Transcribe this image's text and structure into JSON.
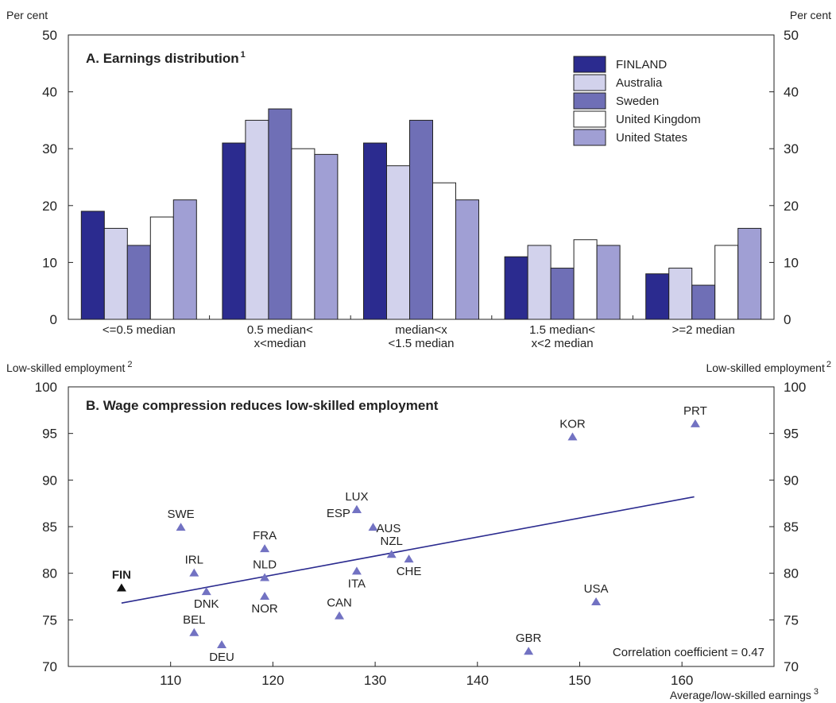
{
  "chart_data": [
    {
      "type": "bar",
      "title": "A. Earnings distribution",
      "title_note": "1",
      "ylabel_left": "Per cent",
      "ylabel_right": "Per cent",
      "ylim": [
        0,
        50
      ],
      "yticks": [
        0,
        10,
        20,
        30,
        40,
        50
      ],
      "ytick_labels": [
        "0",
        "10",
        "20",
        "30",
        "40",
        "50"
      ],
      "grid": false,
      "legend_position": "top-right",
      "categories": [
        [
          "<=0.5 median"
        ],
        [
          "0.5 median<",
          "x<median"
        ],
        [
          "median<x",
          "<1.5 median"
        ],
        [
          "1.5 median<",
          "x<2 median"
        ],
        [
          ">=2 median"
        ]
      ],
      "series": [
        {
          "name": "FINLAND",
          "color": "#2b2b8f",
          "values": [
            19,
            31,
            31,
            11,
            8
          ]
        },
        {
          "name": "Australia",
          "color": "#d2d2ec",
          "values": [
            16,
            35,
            27,
            13,
            9
          ]
        },
        {
          "name": "Sweden",
          "color": "#6f6fb6",
          "values": [
            13,
            37,
            35,
            9,
            6
          ]
        },
        {
          "name": "United Kingdom",
          "color": "#ffffff",
          "values": [
            18,
            30,
            24,
            14,
            13
          ]
        },
        {
          "name": "United States",
          "color": "#a09fd4",
          "values": [
            21,
            29,
            21,
            13,
            16
          ]
        }
      ]
    },
    {
      "type": "scatter",
      "title": "B. Wage compression reduces low-skilled employment",
      "ylabel_left": "Low-skilled employment",
      "ylabel_right": "Low-skilled employment",
      "ylabel_note": "2",
      "xlabel": "Average/low-skilled earnings",
      "xlabel_note": "3",
      "xlim": [
        100,
        169
      ],
      "ylim": [
        70,
        100
      ],
      "xticks": [
        110,
        120,
        130,
        140,
        150,
        160
      ],
      "xtick_labels": [
        "110",
        "120",
        "130",
        "140",
        "150",
        "160"
      ],
      "yticks": [
        70,
        75,
        80,
        85,
        90,
        95,
        100
      ],
      "ytick_labels": [
        "70",
        "75",
        "80",
        "85",
        "90",
        "95",
        "100"
      ],
      "grid": false,
      "marker_color": "#7272c2",
      "highlight_color": "#111111",
      "trend_color": "#2b2b8f",
      "trend_line": {
        "x": [
          105.2,
          161.2
        ],
        "y": [
          76.8,
          88.2
        ]
      },
      "annotation": "Correlation coefficient =  0.47",
      "points": [
        {
          "label": "FIN",
          "x": 105.2,
          "y": 78.4,
          "highlight": true
        },
        {
          "label": "SWE",
          "x": 111.0,
          "y": 84.9
        },
        {
          "label": "IRL",
          "x": 112.3,
          "y": 80.0
        },
        {
          "label": "DNK",
          "x": 113.5,
          "y": 78.0
        },
        {
          "label": "BEL",
          "x": 112.3,
          "y": 73.6
        },
        {
          "label": "DEU",
          "x": 115.0,
          "y": 72.3
        },
        {
          "label": "FRA",
          "x": 119.2,
          "y": 82.6
        },
        {
          "label": "NLD",
          "x": 119.2,
          "y": 79.5
        },
        {
          "label": "NOR",
          "x": 119.2,
          "y": 77.5
        },
        {
          "label": "CAN",
          "x": 126.5,
          "y": 75.4
        },
        {
          "label": "LUX",
          "x": 128.2,
          "y": 86.8
        },
        {
          "label": "ESP",
          "x": 128.2,
          "y": 86.8
        },
        {
          "label": "AUS",
          "x": 129.8,
          "y": 84.9
        },
        {
          "label": "ITA",
          "x": 128.2,
          "y": 80.2
        },
        {
          "label": "NZL",
          "x": 131.6,
          "y": 82.0
        },
        {
          "label": "CHE",
          "x": 133.3,
          "y": 81.5
        },
        {
          "label": "GBR",
          "x": 145.0,
          "y": 71.6
        },
        {
          "label": "KOR",
          "x": 149.3,
          "y": 94.6
        },
        {
          "label": "USA",
          "x": 151.6,
          "y": 76.9
        },
        {
          "label": "PRT",
          "x": 161.3,
          "y": 96.0
        }
      ]
    }
  ]
}
